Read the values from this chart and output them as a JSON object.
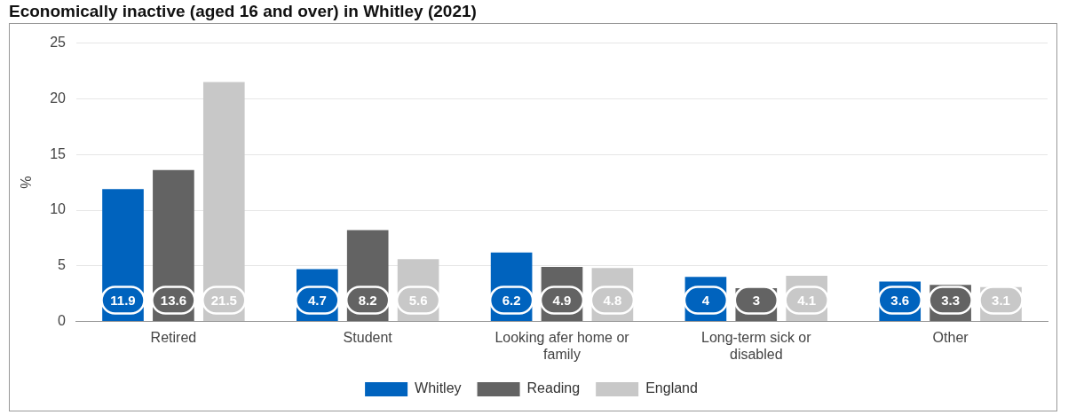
{
  "chart_data": {
    "type": "bar",
    "title": "Economically inactive (aged 16 and over) in Whitley (2021)",
    "ylabel": "%",
    "categories": [
      "Retired",
      "Student",
      "Looking afer home or family",
      "Long-term sick or disabled",
      "Other"
    ],
    "series": [
      {
        "name": "Whitley",
        "color": "#0063be",
        "values": [
          11.9,
          4.7,
          6.2,
          4,
          3.6
        ]
      },
      {
        "name": "Reading",
        "color": "#636363",
        "values": [
          13.6,
          8.2,
          4.9,
          3,
          3.3
        ]
      },
      {
        "name": "England",
        "color": "#c8c8c8",
        "values": [
          21.5,
          5.6,
          4.8,
          4.1,
          3.1
        ]
      }
    ],
    "ylim": [
      0,
      25
    ],
    "yticks": [
      0,
      5,
      10,
      15,
      20,
      25
    ],
    "grid": "y",
    "legend": "bottom",
    "data_labels": true
  }
}
